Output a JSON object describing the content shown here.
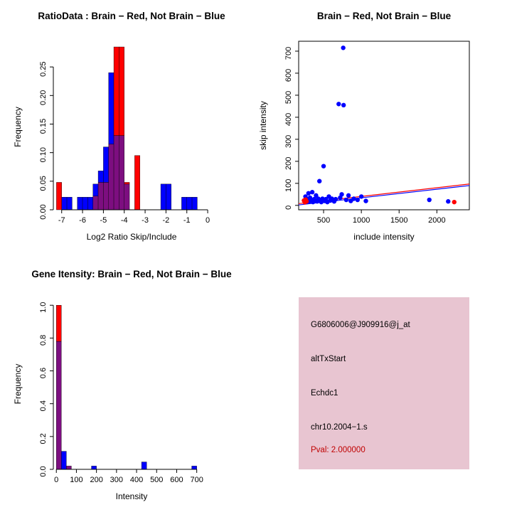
{
  "colors": {
    "red": "#ff0000",
    "blue": "#0000ff",
    "overlap": "#7d0e80",
    "pval_text": "#c00000",
    "info_bg": "#e8c5d1",
    "axis": "#000000"
  },
  "info_box": {
    "lines": [
      {
        "id": "probe-id",
        "text": "G6806006@J909916@j_at"
      },
      {
        "id": "event-type",
        "text": "altTxStart"
      },
      {
        "id": "gene-symbol",
        "text": "Echdc1"
      },
      {
        "id": "location",
        "text": "chr10.2004−1.s"
      },
      {
        "id": "pval",
        "text": "Pval: 2.000000"
      }
    ]
  },
  "chart_data": [
    {
      "id": "ratio-histogram",
      "type": "bar",
      "subtype": "overlaid-histogram",
      "title": "RatioData : Brain − Red, Not Brain − Blue",
      "xlabel": "Log2 Ratio Skip/Include",
      "ylabel": "Frequency",
      "xlim": [
        -7.4,
        0.1
      ],
      "ylim": [
        0,
        0.29
      ],
      "xticks": [
        -7,
        -6,
        -5,
        -4,
        -3,
        -2,
        -1,
        0
      ],
      "xtick_labels": [
        "-7",
        "-6",
        "-5",
        "-4",
        "-3",
        "-2",
        "-1",
        "0"
      ],
      "yticks": [
        0,
        0.05,
        0.1,
        0.15,
        0.2,
        0.25
      ],
      "ytick_labels": [
        "0.00",
        "0.05",
        "0.10",
        "0.15",
        "0.20",
        "0.25"
      ],
      "bin_width": 0.25,
      "series_legend": {
        "red": "Brain",
        "blue": "Not Brain"
      },
      "bins": [
        {
          "x": -7.25,
          "red": 0.048,
          "blue": 0
        },
        {
          "x": -7.0,
          "red": 0,
          "blue": 0.022
        },
        {
          "x": -6.75,
          "red": 0,
          "blue": 0.022
        },
        {
          "x": -6.25,
          "red": 0,
          "blue": 0.022
        },
        {
          "x": -6.0,
          "red": 0,
          "blue": 0.022
        },
        {
          "x": -5.75,
          "red": 0,
          "blue": 0.022
        },
        {
          "x": -5.5,
          "red": 0.024,
          "blue": 0.045
        },
        {
          "x": -5.25,
          "red": 0.048,
          "blue": 0.068
        },
        {
          "x": -5.0,
          "red": 0.048,
          "blue": 0.11
        },
        {
          "x": -4.75,
          "red": 0.115,
          "blue": 0.24
        },
        {
          "x": -4.5,
          "red": 0.285,
          "blue": 0.13
        },
        {
          "x": -4.25,
          "red": 0.285,
          "blue": 0.13
        },
        {
          "x": -4.0,
          "red": 0.048,
          "blue": 0.045
        },
        {
          "x": -3.5,
          "red": 0.095,
          "blue": 0
        },
        {
          "x": -2.25,
          "red": 0,
          "blue": 0.045
        },
        {
          "x": -2.0,
          "red": 0,
          "blue": 0.045
        },
        {
          "x": -1.25,
          "red": 0,
          "blue": 0.022
        },
        {
          "x": -1.0,
          "red": 0,
          "blue": 0.022
        },
        {
          "x": -0.75,
          "red": 0,
          "blue": 0.022
        }
      ]
    },
    {
      "id": "intensity-scatter",
      "type": "scatter",
      "title": "Brain − Red, Not Brain − Blue",
      "xlabel": "include intensity",
      "ylabel": "skip intensity",
      "xlim": [
        170,
        2430
      ],
      "ylim": [
        -20,
        745
      ],
      "xticks": [
        500,
        1000,
        1500,
        2000
      ],
      "xtick_labels": [
        "500",
        "1000",
        "1500",
        "2000"
      ],
      "yticks": [
        0,
        100,
        200,
        300,
        400,
        500,
        600,
        700
      ],
      "ytick_labels": [
        "0",
        "100",
        "200",
        "300",
        "400",
        "500",
        "600",
        "700"
      ],
      "series": [
        {
          "name": "Not Brain",
          "color": "blue",
          "points": [
            [
              250,
              20
            ],
            [
              260,
              40
            ],
            [
              270,
              15
            ],
            [
              285,
              28
            ],
            [
              300,
              55
            ],
            [
              310,
              18
            ],
            [
              320,
              35
            ],
            [
              335,
              22
            ],
            [
              350,
              60
            ],
            [
              360,
              15
            ],
            [
              375,
              28
            ],
            [
              390,
              20
            ],
            [
              400,
              45
            ],
            [
              415,
              18
            ],
            [
              430,
              30
            ],
            [
              445,
              110
            ],
            [
              455,
              22
            ],
            [
              470,
              15
            ],
            [
              485,
              30
            ],
            [
              500,
              178
            ],
            [
              515,
              20
            ],
            [
              530,
              28
            ],
            [
              550,
              15
            ],
            [
              570,
              40
            ],
            [
              590,
              22
            ],
            [
              610,
              30
            ],
            [
              640,
              18
            ],
            [
              660,
              28
            ],
            [
              700,
              460
            ],
            [
              720,
              35
            ],
            [
              740,
              50
            ],
            [
              760,
              715
            ],
            [
              765,
              455
            ],
            [
              800,
              25
            ],
            [
              830,
              45
            ],
            [
              860,
              20
            ],
            [
              900,
              30
            ],
            [
              950,
              25
            ],
            [
              1000,
              40
            ],
            [
              1060,
              20
            ],
            [
              1900,
              25
            ],
            [
              2150,
              18
            ]
          ]
        },
        {
          "name": "Brain",
          "color": "red",
          "points": [
            [
              240,
              22
            ],
            [
              252,
              14
            ],
            [
              262,
              26
            ],
            [
              274,
              18
            ],
            [
              2230,
              15
            ]
          ]
        }
      ],
      "lines": [
        {
          "name": "brain-fit",
          "color": "red",
          "x1": 170,
          "y1": 8,
          "x2": 2430,
          "y2": 97
        },
        {
          "name": "not-brain-fit",
          "color": "blue",
          "x1": 170,
          "y1": 2,
          "x2": 2430,
          "y2": 90
        }
      ]
    },
    {
      "id": "gene-intensity-histogram",
      "type": "bar",
      "subtype": "overlaid-histogram",
      "title": "Gene Itensity: Brain − Red, Not Brain − Blue",
      "xlabel": "Intensity",
      "ylabel": "Frequency",
      "xlim": [
        -15,
        765
      ],
      "ylim": [
        0,
        1.04
      ],
      "xticks": [
        0,
        100,
        200,
        300,
        400,
        500,
        600,
        700
      ],
      "xtick_labels": [
        "0",
        "100",
        "200",
        "300",
        "400",
        "500",
        "600",
        "700"
      ],
      "yticks": [
        0,
        0.2,
        0.4,
        0.6,
        0.8,
        1.0
      ],
      "ytick_labels": [
        "0.0",
        "0.2",
        "0.4",
        "0.6",
        "0.8",
        "1.0"
      ],
      "bin_width": 25,
      "series_legend": {
        "red": "Brain",
        "blue": "Not Brain"
      },
      "bins": [
        {
          "x": 0,
          "red": 1.0,
          "blue": 0.78
        },
        {
          "x": 25,
          "red": 0,
          "blue": 0.11
        },
        {
          "x": 50,
          "red": 0.02,
          "blue": 0.02
        },
        {
          "x": 175,
          "red": 0,
          "blue": 0.02
        },
        {
          "x": 425,
          "red": 0,
          "blue": 0.045
        },
        {
          "x": 675,
          "red": 0,
          "blue": 0.02
        }
      ]
    }
  ]
}
